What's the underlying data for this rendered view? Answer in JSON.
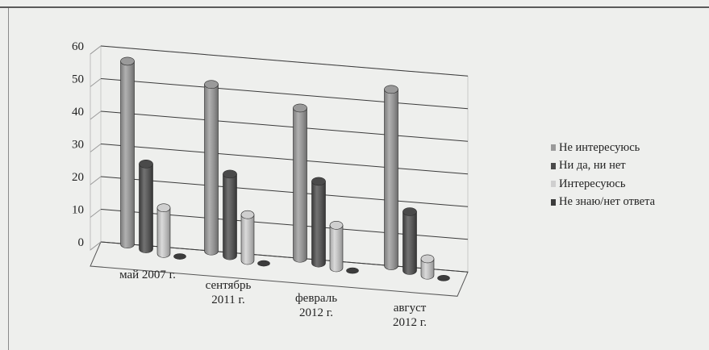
{
  "chart_data": {
    "type": "bar",
    "categories": [
      [
        "май 2007 г."
      ],
      [
        "сентябрь",
        "2011 г."
      ],
      [
        "февраль",
        "2012 г."
      ],
      [
        "август",
        "2012 г."
      ]
    ],
    "series": [
      {
        "name": "Не интересуюсь",
        "values": [
          56,
          51,
          46,
          54
        ],
        "color": "#9a9a9a"
      },
      {
        "name": "Ни да, ни нет",
        "values": [
          26,
          25,
          25,
          18
        ],
        "color": "#4a4a4a"
      },
      {
        "name": "Интересуюсь",
        "values": [
          14,
          14,
          13,
          5
        ],
        "color": "#cfcfcf"
      },
      {
        "name": "Не знаю/нет ответа",
        "values": [
          0,
          0,
          0,
          0
        ],
        "color": "#3c3c3c"
      }
    ],
    "yticks": [
      "0",
      "10",
      "20",
      "30",
      "40",
      "50",
      "60"
    ],
    "ylim": [
      0,
      60
    ],
    "grid": true,
    "legend": "right"
  }
}
